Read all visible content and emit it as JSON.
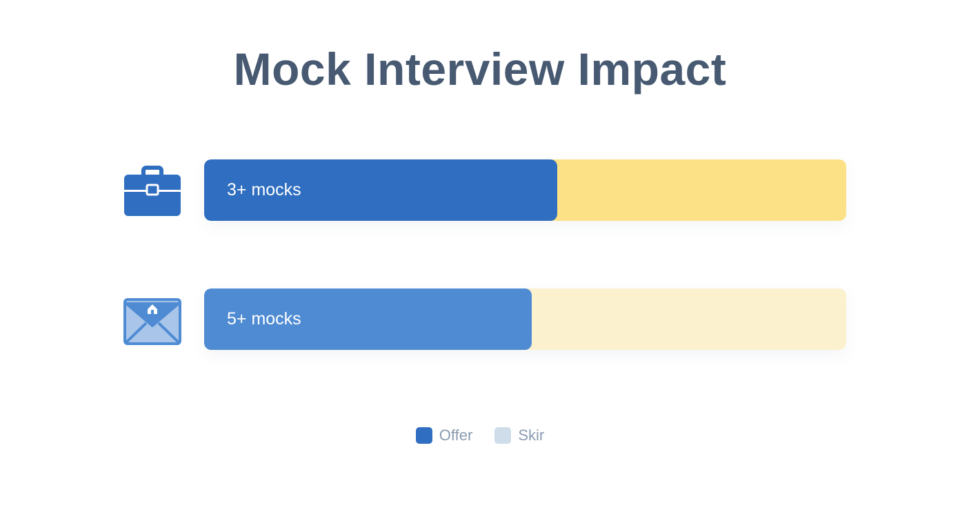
{
  "title": "Mock Interview Impact",
  "colors": {
    "title": "#475a72",
    "offer_dark": "#2f6ec0",
    "offer_light": "#4f8bd3",
    "track_dark": "#fde186",
    "track_light": "#fcf1cf",
    "skip_swatch": "#cfdcea"
  },
  "chart_data": {
    "type": "bar",
    "orientation": "horizontal",
    "stacked": true,
    "title": "Mock Interview Impact",
    "categories": [
      "3+ mocks",
      "5+ mocks"
    ],
    "icons": [
      "briefcase-icon",
      "envelope-icon"
    ],
    "series": [
      {
        "name": "Offer",
        "values": [
          0.55,
          0.51
        ]
      },
      {
        "name": "Skir",
        "values": [
          0.45,
          0.49
        ]
      }
    ],
    "xlim": [
      0,
      1
    ],
    "grid": false,
    "legend_position": "bottom-center"
  },
  "legend": [
    {
      "label": "Offer",
      "color": "#2f6ec0"
    },
    {
      "label": "Skir",
      "color": "#cfdcea"
    }
  ]
}
